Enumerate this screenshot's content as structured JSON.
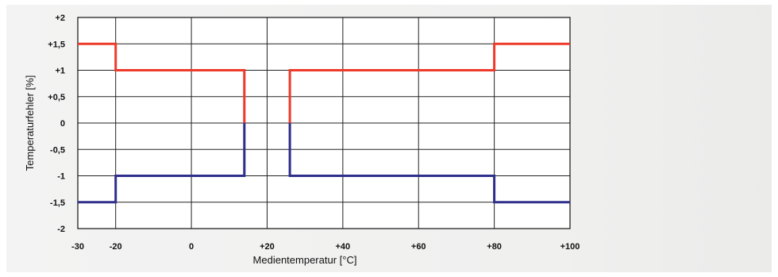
{
  "chart_data": {
    "type": "line",
    "title": "",
    "xlabel": "Medientemperatur [°C]",
    "ylabel": "Temperaturfehler [%]",
    "xlim": [
      -30,
      100
    ],
    "ylim": [
      -2,
      2
    ],
    "grid": true,
    "x_ticks": [
      {
        "value": -30,
        "label": "-30"
      },
      {
        "value": -20,
        "label": "-20"
      },
      {
        "value": 0,
        "label": "0"
      },
      {
        "value": 20,
        "label": "+20"
      },
      {
        "value": 40,
        "label": "+40"
      },
      {
        "value": 60,
        "label": "+60"
      },
      {
        "value": 80,
        "label": "+80"
      },
      {
        "value": 100,
        "label": "+100"
      }
    ],
    "y_ticks": [
      {
        "value": 2,
        "label": "+2"
      },
      {
        "value": 1.5,
        "label": "+1,5"
      },
      {
        "value": 1,
        "label": "+1"
      },
      {
        "value": 0.5,
        "label": "+0,5"
      },
      {
        "value": 0,
        "label": "0"
      },
      {
        "value": -0.5,
        "label": "-0,5"
      },
      {
        "value": -1,
        "label": "-1"
      },
      {
        "value": -1.5,
        "label": "-1,5"
      },
      {
        "value": -2,
        "label": "-2"
      }
    ],
    "series": [
      {
        "color": "#ee3a2b",
        "segments": [
          [
            [
              -30,
              1.5
            ],
            [
              -20,
              1.5
            ],
            [
              -20,
              1
            ],
            [
              14,
              1
            ],
            [
              14,
              0
            ]
          ],
          [
            [
              26,
              0
            ],
            [
              26,
              1
            ],
            [
              80,
              1
            ],
            [
              80,
              1.5
            ],
            [
              100,
              1.5
            ]
          ]
        ]
      },
      {
        "color": "#2e2e8c",
        "segments": [
          [
            [
              -30,
              -1.5
            ],
            [
              -20,
              -1.5
            ],
            [
              -20,
              -1
            ],
            [
              14,
              -1
            ],
            [
              14,
              0
            ]
          ],
          [
            [
              26,
              0
            ],
            [
              26,
              -1
            ],
            [
              80,
              -1
            ],
            [
              80,
              -1.5
            ],
            [
              100,
              -1.5
            ]
          ]
        ]
      }
    ]
  }
}
